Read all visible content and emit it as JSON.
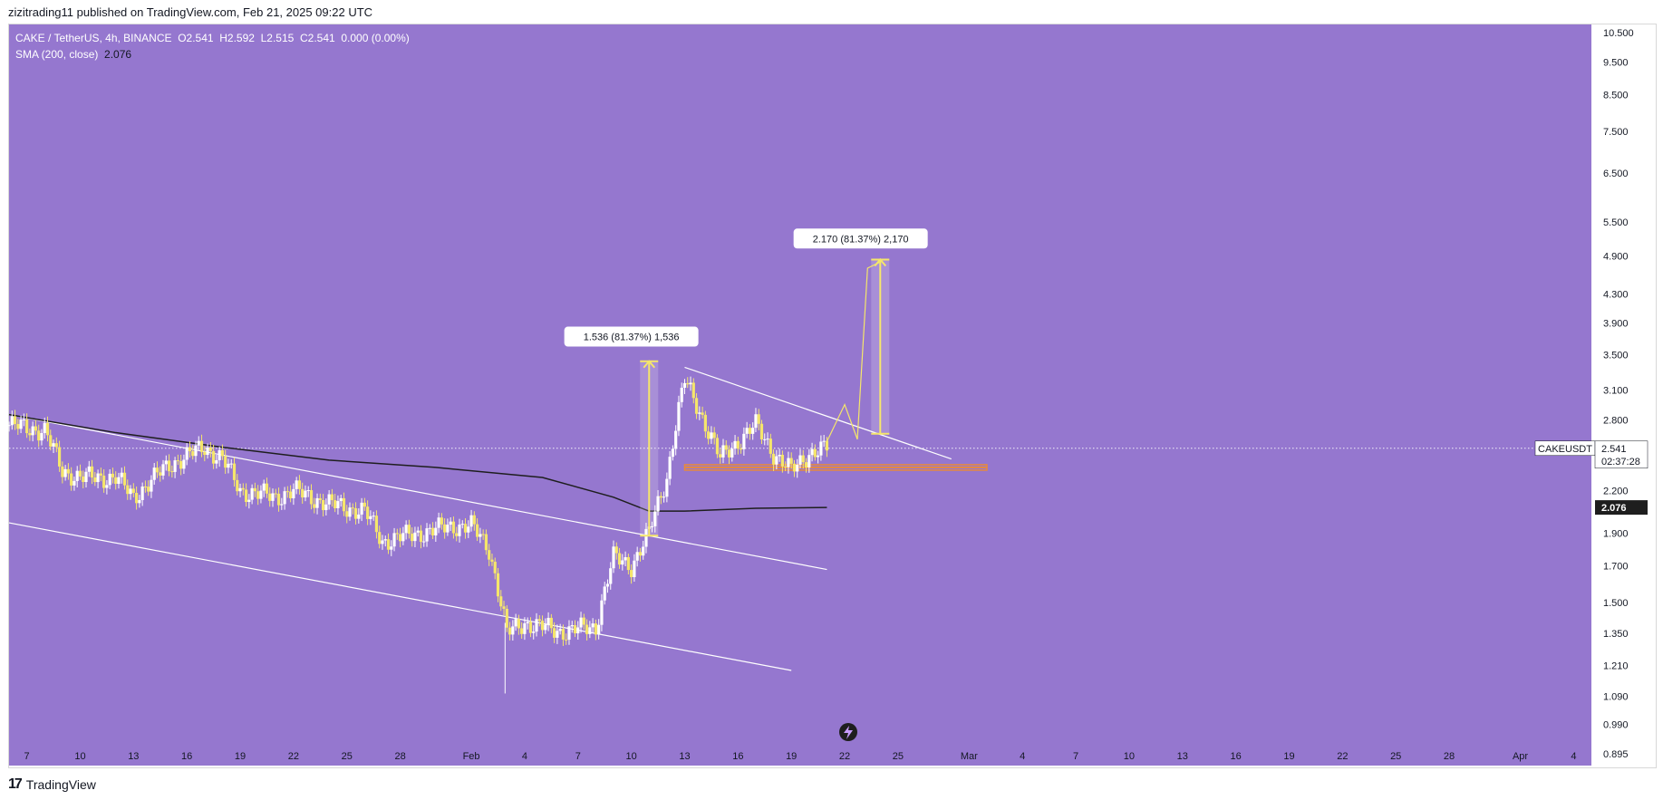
{
  "header": {
    "publisher": "zizitrading11 published on TradingView.com, Feb 21, 2025 09:22 UTC"
  },
  "legend": {
    "symbol_line": "CAKE / TetherUS, 4h, BINANCE",
    "open": "O2.541",
    "high": "H2.592",
    "low": "L2.515",
    "close": "C2.541",
    "change": "0.000 (0.00%)",
    "sma_label": "SMA (200, close)",
    "sma_value": "2.076"
  },
  "price_labels": {
    "symbol": "CAKEUSDT",
    "last_price": "2.541",
    "countdown": "02:37:28",
    "sma_price": "2.076"
  },
  "annotations": {
    "measure1": "1.536 (81.37%) 1,536",
    "measure2": "2.170 (81.37%) 2,170"
  },
  "footer": {
    "logo": "17",
    "brand": "TradingView"
  },
  "colors": {
    "background": "#9577cf",
    "candle": "#f5e66b",
    "trendline": "#ffffff",
    "sma": "#1e1e1e",
    "support_zone": "#e98a3a",
    "price_badge": "#ffffff"
  },
  "chart_data": {
    "type": "candlestick",
    "title": "CAKE / TetherUS, 4h, BINANCE",
    "y_scale": "log",
    "ylim": [
      0.86,
      10.8
    ],
    "y_ticks": [
      "10.500",
      "9.500",
      "8.500",
      "7.500",
      "6.500",
      "5.500",
      "4.900",
      "4.300",
      "3.900",
      "3.500",
      "3.100",
      "2.800",
      "2.500",
      "2.200",
      "1.900",
      "1.700",
      "1.500",
      "1.350",
      "1.210",
      "1.090",
      "0.990",
      "0.895"
    ],
    "x_ticks": [
      "7",
      "10",
      "13",
      "16",
      "19",
      "22",
      "25",
      "28",
      "Feb",
      "4",
      "7",
      "10",
      "13",
      "16",
      "19",
      "22",
      "25",
      "Mar",
      "4",
      "7",
      "10",
      "13",
      "16",
      "19",
      "22",
      "25",
      "28",
      "Apr",
      "4"
    ],
    "x_range_days": [
      "2025-01-06",
      "2025-04-05"
    ],
    "price_series": {
      "name": "CAKEUSDT close (approx)",
      "dates": [
        "2025-01-06",
        "2025-01-08",
        "2025-01-09",
        "2025-01-10",
        "2025-01-12",
        "2025-01-13",
        "2025-01-15",
        "2025-01-17",
        "2025-01-18",
        "2025-01-19",
        "2025-01-21",
        "2025-01-22",
        "2025-01-24",
        "2025-01-26",
        "2025-01-27",
        "2025-01-29",
        "2025-01-31",
        "2025-02-01",
        "2025-02-02",
        "2025-02-03",
        "2025-02-04",
        "2025-02-06",
        "2025-02-08",
        "2025-02-09",
        "2025-02-10",
        "2025-02-11",
        "2025-02-12",
        "2025-02-13",
        "2025-02-15",
        "2025-02-17",
        "2025-02-18",
        "2025-02-19",
        "2025-02-20",
        "2025-02-21"
      ],
      "values": [
        2.75,
        2.7,
        2.35,
        2.3,
        2.3,
        2.15,
        2.4,
        2.55,
        2.45,
        2.2,
        2.15,
        2.2,
        2.1,
        2.05,
        1.85,
        1.9,
        1.95,
        1.95,
        1.8,
        1.35,
        1.4,
        1.36,
        1.38,
        1.75,
        1.7,
        1.9,
        2.3,
        3.2,
        2.45,
        2.75,
        2.5,
        2.35,
        2.5,
        2.541
      ]
    },
    "sma_200": {
      "dates": [
        "2025-01-06",
        "2025-01-12",
        "2025-01-18",
        "2025-01-24",
        "2025-01-30",
        "2025-02-05",
        "2025-02-09",
        "2025-02-11",
        "2025-02-13",
        "2025-02-17",
        "2025-02-21"
      ],
      "values": [
        2.85,
        2.68,
        2.55,
        2.44,
        2.38,
        2.3,
        2.15,
        2.05,
        2.05,
        2.07,
        2.076
      ]
    },
    "levels": {
      "last": 2.541,
      "sma": 2.076,
      "support": 2.38
    },
    "projection": {
      "from_date": "2025-02-21",
      "from_price": 2.6,
      "to_date": "2025-02-24",
      "to_price": 4.8
    },
    "grid": false,
    "legend_placement": "top-left"
  }
}
